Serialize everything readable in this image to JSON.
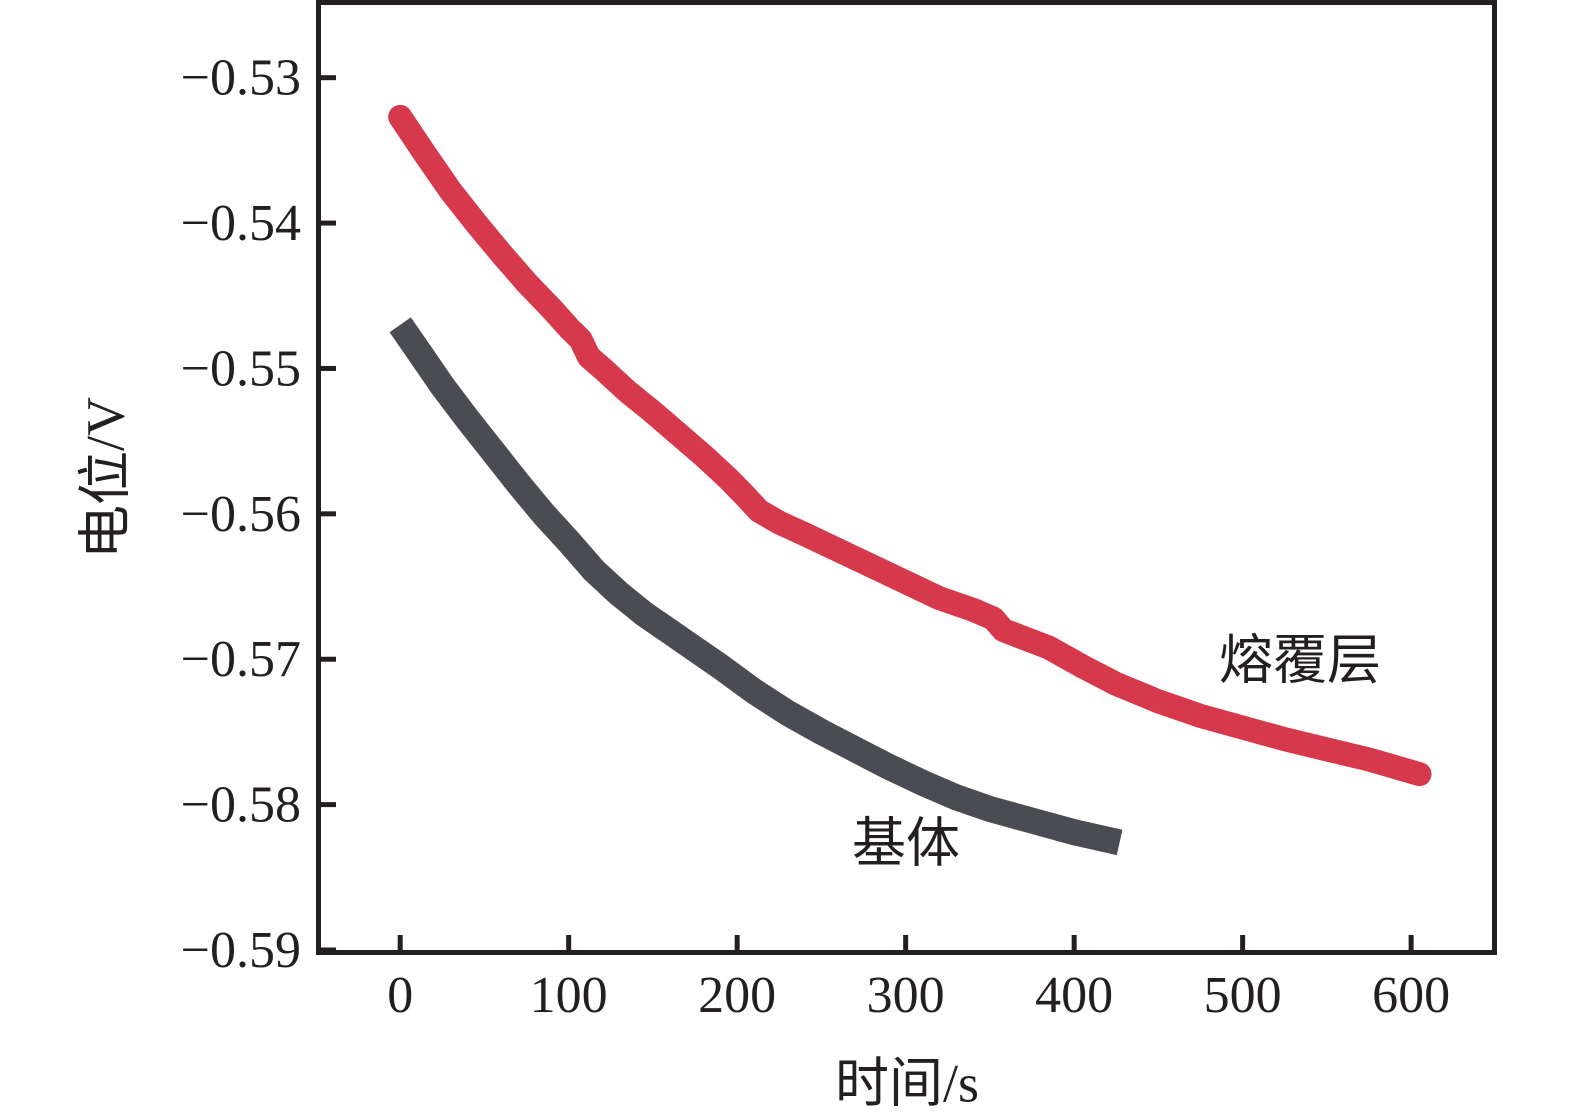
{
  "figure": {
    "background": "#ffffff",
    "axis_color": "#231f20",
    "tick_label_color": "#231f20"
  },
  "chart_data": {
    "type": "line",
    "title": "",
    "xlabel": "时间/s",
    "ylabel": "电位/V",
    "xlim": [
      -47,
      648
    ],
    "ylim": [
      -0.59,
      -0.525
    ],
    "x_ticks": [
      0,
      100,
      200,
      300,
      400,
      500,
      600
    ],
    "y_ticks": [
      -0.53,
      -0.54,
      -0.55,
      -0.56,
      -0.57,
      -0.58,
      -0.59
    ],
    "grid": false,
    "legend_position": "inline-annotations",
    "tick_style": "inward",
    "series": [
      {
        "name": "基体",
        "color": "#4b4c53",
        "line_width": 26,
        "line_cap": "butt",
        "points": [
          [
            0,
            -0.547
          ],
          [
            12,
            -0.549
          ],
          [
            25,
            -0.5512
          ],
          [
            40,
            -0.5535
          ],
          [
            55,
            -0.5557
          ],
          [
            70,
            -0.5579
          ],
          [
            85,
            -0.56
          ],
          [
            100,
            -0.5619
          ],
          [
            115,
            -0.5639
          ],
          [
            130,
            -0.5655
          ],
          [
            145,
            -0.5669
          ],
          [
            160,
            -0.5681
          ],
          [
            175,
            -0.5693
          ],
          [
            190,
            -0.5705
          ],
          [
            210,
            -0.5722
          ],
          [
            230,
            -0.5737
          ],
          [
            250,
            -0.575
          ],
          [
            270,
            -0.5762
          ],
          [
            290,
            -0.5774
          ],
          [
            310,
            -0.5785
          ],
          [
            330,
            -0.5795
          ],
          [
            350,
            -0.5803
          ],
          [
            375,
            -0.5811
          ],
          [
            400,
            -0.5819
          ],
          [
            427,
            -0.5826
          ]
        ]
      },
      {
        "name": "熔覆层",
        "color": "#d6394b",
        "line_width": 24,
        "line_cap": "round",
        "points": [
          [
            0,
            -0.5327
          ],
          [
            15,
            -0.5353
          ],
          [
            30,
            -0.5378
          ],
          [
            45,
            -0.54
          ],
          [
            60,
            -0.5421
          ],
          [
            75,
            -0.5441
          ],
          [
            90,
            -0.5459
          ],
          [
            100,
            -0.5472
          ],
          [
            107,
            -0.548
          ],
          [
            112,
            -0.5492
          ],
          [
            120,
            -0.55
          ],
          [
            135,
            -0.5516
          ],
          [
            150,
            -0.553
          ],
          [
            165,
            -0.5545
          ],
          [
            180,
            -0.556
          ],
          [
            195,
            -0.5576
          ],
          [
            205,
            -0.5588
          ],
          [
            213,
            -0.5598
          ],
          [
            225,
            -0.5606
          ],
          [
            240,
            -0.5614
          ],
          [
            260,
            -0.5625
          ],
          [
            280,
            -0.5636
          ],
          [
            300,
            -0.5647
          ],
          [
            320,
            -0.5658
          ],
          [
            340,
            -0.5666
          ],
          [
            352,
            -0.5672
          ],
          [
            358,
            -0.568
          ],
          [
            385,
            -0.5692
          ],
          [
            405,
            -0.5705
          ],
          [
            425,
            -0.5717
          ],
          [
            450,
            -0.5729
          ],
          [
            475,
            -0.5739
          ],
          [
            500,
            -0.5747
          ],
          [
            525,
            -0.5755
          ],
          [
            550,
            -0.5762
          ],
          [
            575,
            -0.5769
          ],
          [
            605,
            -0.5779
          ]
        ]
      }
    ],
    "annotations": [
      {
        "text": "熔覆层",
        "x": 534,
        "y": -0.5697
      },
      {
        "text": "基体",
        "x": 300,
        "y": -0.5823
      }
    ]
  }
}
